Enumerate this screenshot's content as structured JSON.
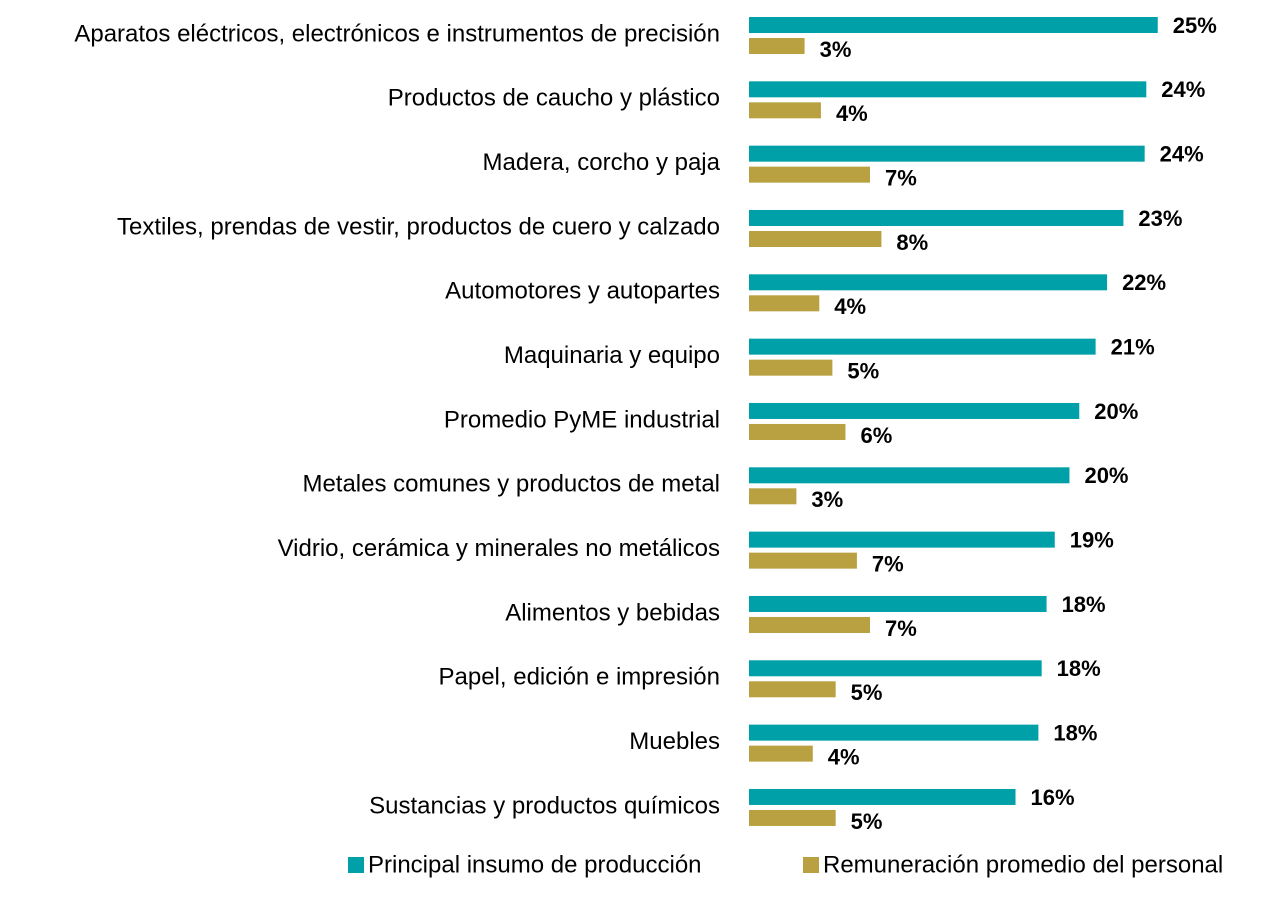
{
  "chart_data": {
    "type": "barh",
    "categories": [
      "Aparatos eléctricos, electrónicos e instrumentos de precisión",
      "Productos de caucho y plástico",
      "Madera, corcho y paja",
      "Textiles, prendas de vestir, productos de cuero y calzado",
      "Automotores y autopartes",
      "Maquinaria y equipo",
      "Promedio PyME industrial",
      "Metales comunes y productos de metal",
      "Vidrio, cerámica y minerales no metálicos",
      "Alimentos y bebidas",
      "Papel, edición e impresión",
      "Muebles",
      "Sustancias y productos químicos"
    ],
    "series": [
      {
        "name": "Principal insumo de producción",
        "color": "#00a0a8",
        "values": [
          25.0,
          24.3,
          24.2,
          22.9,
          21.9,
          21.2,
          20.2,
          19.6,
          18.7,
          18.2,
          17.9,
          17.7,
          16.3
        ],
        "value_labels": [
          "25%",
          "24%",
          "24%",
          "23%",
          "22%",
          "21%",
          "20%",
          "20%",
          "19%",
          "18%",
          "18%",
          "18%",
          "16%"
        ]
      },
      {
        "name": "Remuneración promedio del personal",
        "color": "#b9a040",
        "values": [
          3.4,
          4.4,
          7.4,
          8.1,
          4.3,
          5.1,
          5.9,
          2.9,
          6.6,
          7.4,
          5.3,
          3.9,
          5.3
        ],
        "value_labels": [
          "3%",
          "4%",
          "7%",
          "8%",
          "4%",
          "5%",
          "6%",
          "3%",
          "7%",
          "7%",
          "5%",
          "4%",
          "5%"
        ]
      }
    ],
    "xlim": [
      0,
      30
    ],
    "legend": "bottom"
  }
}
